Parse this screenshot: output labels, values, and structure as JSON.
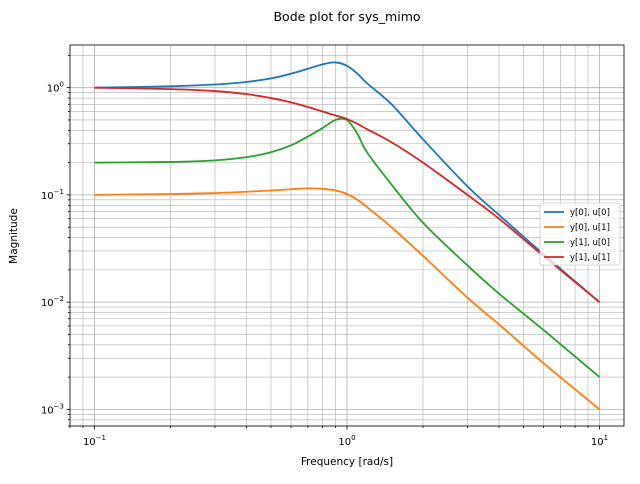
{
  "chart_data": {
    "type": "line",
    "title": "Bode plot for sys_mimo",
    "xlabel": "Frequency [rad/s]",
    "ylabel": "Magnitude",
    "xscale": "log",
    "yscale": "log",
    "xlim": [
      0.08,
      12.5
    ],
    "ylim": [
      0.0007,
      2.5
    ],
    "grid": "on (major and minor)",
    "legend_position": "right",
    "x_ticks": [
      {
        "base": "10",
        "exp": "−1",
        "value": 0.1
      },
      {
        "base": "10",
        "exp": "0",
        "value": 1
      },
      {
        "base": "10",
        "exp": "1",
        "value": 10
      }
    ],
    "y_ticks": [
      {
        "base": "10",
        "exp": "−3",
        "value": 0.001
      },
      {
        "base": "10",
        "exp": "−2",
        "value": 0.01
      },
      {
        "base": "10",
        "exp": "−1",
        "value": 0.1
      },
      {
        "base": "10",
        "exp": "0",
        "value": 1
      }
    ],
    "x": [
      0.1,
      0.2,
      0.3,
      0.4,
      0.5,
      0.6,
      0.7,
      0.8,
      0.9,
      1.0,
      1.1,
      1.2,
      1.5,
      2.0,
      3.0,
      4.0,
      6.0,
      10.0
    ],
    "series": [
      {
        "name": "y[0], u[0]",
        "color": "#1f77b4",
        "values": [
          1.0,
          1.03,
          1.07,
          1.13,
          1.22,
          1.35,
          1.5,
          1.65,
          1.72,
          1.6,
          1.35,
          1.1,
          0.7,
          0.33,
          0.12,
          0.065,
          0.028,
          0.01
        ]
      },
      {
        "name": "y[0], u[1]",
        "color": "#ff7f0e",
        "values": [
          0.1,
          0.102,
          0.104,
          0.107,
          0.11,
          0.113,
          0.115,
          0.114,
          0.11,
          0.102,
          0.09,
          0.077,
          0.05,
          0.027,
          0.011,
          0.0062,
          0.0027,
          0.001
        ]
      },
      {
        "name": "y[1], u[0]",
        "color": "#2ca02c",
        "values": [
          0.2,
          0.203,
          0.21,
          0.225,
          0.25,
          0.29,
          0.35,
          0.42,
          0.5,
          0.5,
          0.37,
          0.25,
          0.125,
          0.055,
          0.022,
          0.012,
          0.0055,
          0.002
        ]
      },
      {
        "name": "y[1], u[1]",
        "color": "#d62728",
        "values": [
          1.0,
          0.97,
          0.93,
          0.87,
          0.8,
          0.73,
          0.66,
          0.6,
          0.55,
          0.51,
          0.46,
          0.41,
          0.31,
          0.2,
          0.1,
          0.06,
          0.027,
          0.01
        ]
      }
    ]
  }
}
